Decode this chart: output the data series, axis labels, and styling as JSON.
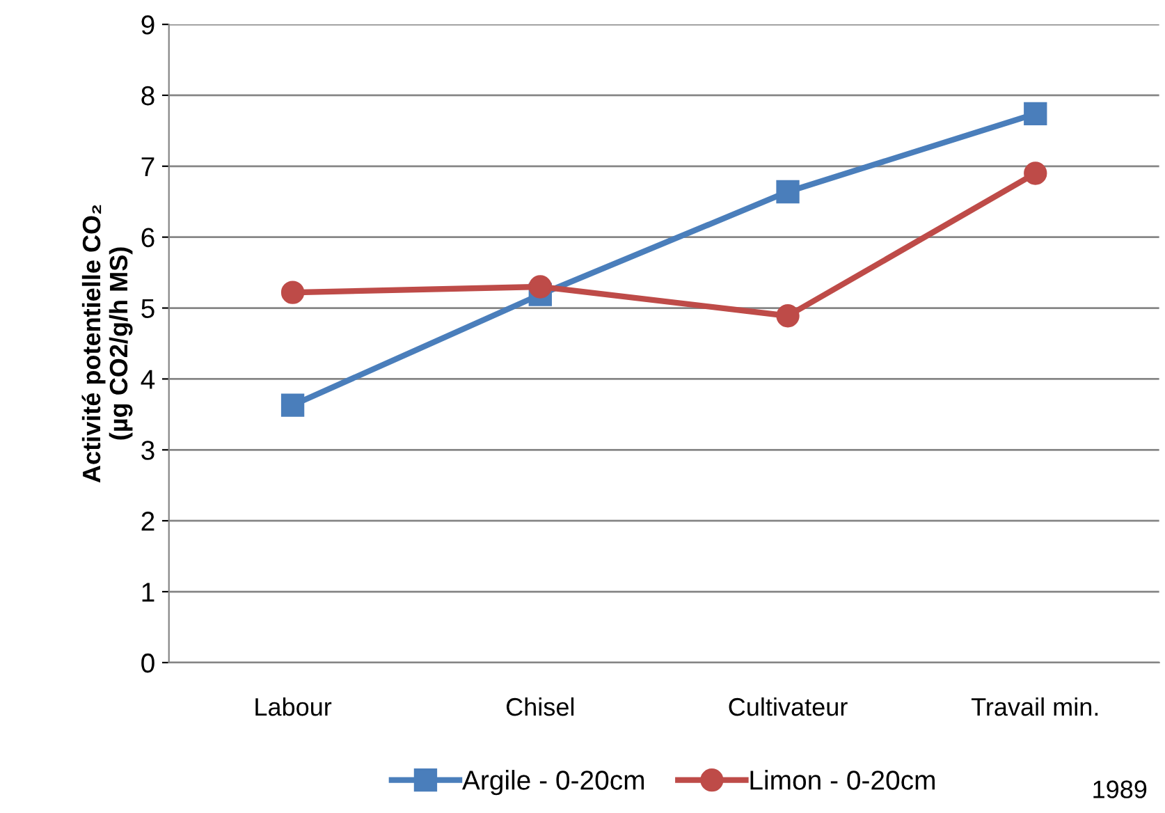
{
  "chart_data": {
    "type": "line",
    "ylabel": "Activité potentielle CO₂\n(µg CO2/g/h MS)",
    "categories": [
      "Labour",
      "Chisel",
      "Cultivateur",
      "Travail min."
    ],
    "series": [
      {
        "name": "Argile - 0-20cm",
        "color": "#4a7ebb",
        "marker": "square",
        "values": [
          3.63,
          5.19,
          6.64,
          7.74
        ]
      },
      {
        "name": "Limon - 0-20cm",
        "color": "#be4b48",
        "marker": "circle",
        "values": [
          5.22,
          5.3,
          4.89,
          6.9
        ]
      }
    ],
    "ylim": [
      0,
      9
    ],
    "yticks": [
      0,
      1,
      2,
      3,
      4,
      5,
      6,
      7,
      8,
      9
    ],
    "grid": "y",
    "legend": "bottom",
    "annotations": [
      "1989"
    ]
  }
}
